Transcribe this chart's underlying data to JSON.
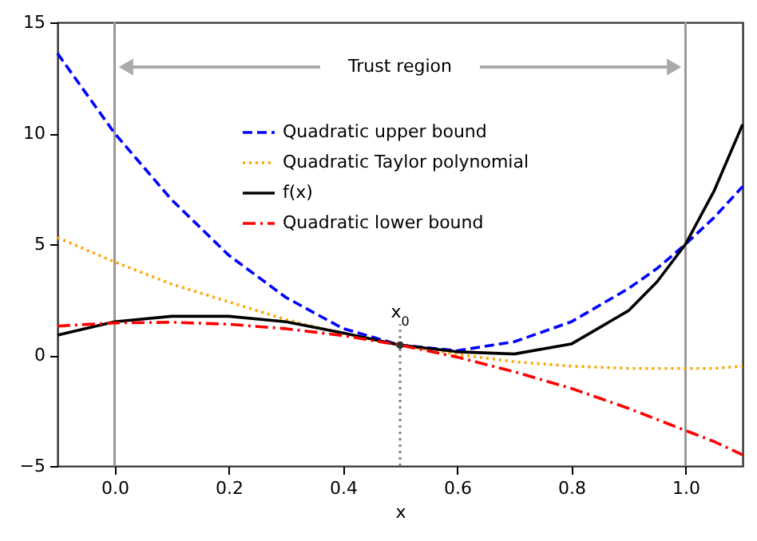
{
  "chart_data": {
    "type": "line",
    "xlabel": "x",
    "x": [
      -0.1,
      0,
      0.1,
      0.2,
      0.3,
      0.4,
      0.5,
      0.6,
      0.7,
      0.8,
      0.9,
      0.95,
      1.0,
      1.05,
      1.1
    ],
    "series": [
      {
        "name": "Quadratic upper bound",
        "color": "#0000ff",
        "line_style": "dashed",
        "values": [
          13.6,
          10.0,
          7.0,
          4.5,
          2.6,
          1.2,
          0.45,
          0.2,
          0.6,
          1.5,
          3.0,
          3.9,
          5.0,
          6.2,
          7.6
        ]
      },
      {
        "name": "Quadratic Taylor polynomial",
        "color": "#ffa500",
        "line_style": "dotted",
        "values": [
          5.3,
          4.2,
          3.2,
          2.4,
          1.6,
          0.97,
          0.45,
          0.03,
          -0.3,
          -0.5,
          -0.6,
          -0.6,
          -0.6,
          -0.6,
          -0.5
        ]
      },
      {
        "name": "f(x)",
        "color": "#000000",
        "line_style": "solid",
        "values": [
          0.9,
          1.5,
          1.75,
          1.75,
          1.5,
          1.0,
          0.45,
          0.15,
          0.05,
          0.5,
          2.0,
          3.3,
          5.0,
          7.4,
          10.4
        ]
      },
      {
        "name": "Quadratic lower bound",
        "color": "#ff0000",
        "line_style": "dashdot",
        "values": [
          1.31,
          1.45,
          1.48,
          1.39,
          1.19,
          0.88,
          0.45,
          -0.09,
          -0.75,
          -1.5,
          -2.4,
          -2.9,
          -3.4,
          -3.9,
          -4.5
        ]
      },
      {
        "type": "line",
        "color": "#808080",
        "line_style": "dotted",
        "x": [
          0.5,
          0.5
        ],
        "values": [
          -5,
          1.4
        ]
      },
      {
        "type": "scatter",
        "color": "#333333",
        "marker": "circle",
        "values": [
          null,
          null,
          null,
          null,
          null,
          null,
          0.45,
          null,
          null,
          null,
          null,
          null,
          null,
          null,
          null
        ]
      }
    ],
    "xlim": [
      -0.1,
      1.1
    ],
    "ylim": [
      -5,
      15
    ],
    "xticks": [
      {
        "value": 0,
        "label": "0.0"
      },
      {
        "value": 0.2,
        "label": "0.2"
      },
      {
        "value": 0.4,
        "label": "0.4"
      },
      {
        "value": 0.6,
        "label": "0.6"
      },
      {
        "value": 0.8,
        "label": "0.8"
      },
      {
        "value": 1,
        "label": "1.0"
      }
    ],
    "yticks": [
      {
        "value": -5,
        "label": "−5"
      },
      0,
      5,
      10,
      15
    ],
    "ref_lines": [
      {
        "axis": "x",
        "value": 0,
        "color": "#999999"
      },
      {
        "axis": "x",
        "value": 1,
        "color": "#999999"
      }
    ],
    "annotations": [
      "Trust region",
      "x$_{0}$"
    ],
    "legend": "top",
    "grid": false
  }
}
